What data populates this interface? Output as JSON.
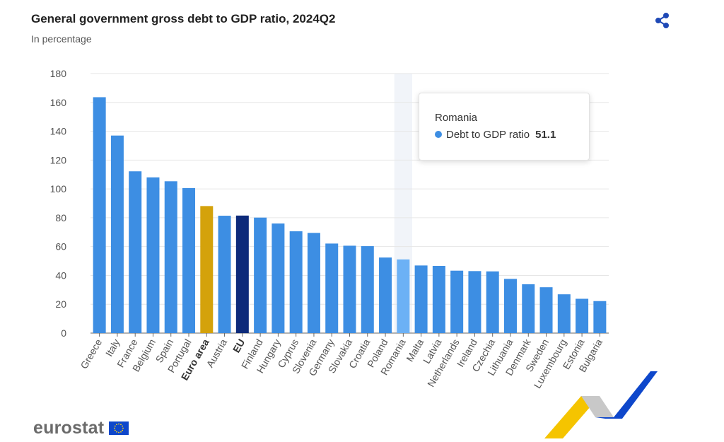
{
  "header": {
    "title": "General government gross debt to GDP ratio, 2024Q2",
    "subtitle": "In percentage"
  },
  "icons": {
    "share": "share-icon",
    "flag": "eu-flag-icon"
  },
  "tooltip": {
    "country": "Romania",
    "series": "Debt to GDP ratio",
    "value": "51.1"
  },
  "footer": {
    "logo": "eurostat"
  },
  "colors": {
    "bar": "#3d8ee3",
    "euro_area": "#d4a20b",
    "eu": "#0d2a7a",
    "highlight": "#6cb1f5",
    "grid": "#e6e6e6",
    "share_icon": "#1f49b6"
  },
  "chart_data": {
    "type": "bar",
    "title": "General government gross debt to GDP ratio, 2024Q2",
    "subtitle": "In percentage",
    "categories": [
      "Greece",
      "Italy",
      "France",
      "Belgium",
      "Spain",
      "Portugal",
      "Euro area",
      "Austria",
      "EU",
      "Finland",
      "Hungary",
      "Cyprus",
      "Slovenia",
      "Germany",
      "Slovakia",
      "Croatia",
      "Poland",
      "Romania",
      "Malta",
      "Latvia",
      "Netherlands",
      "Ireland",
      "Czechia",
      "Lithuania",
      "Denmark",
      "Sweden",
      "Luxembourg",
      "Estonia",
      "Bulgaria"
    ],
    "values": [
      163.6,
      137.0,
      112.2,
      108.0,
      105.3,
      100.6,
      88.1,
      81.4,
      81.5,
      80.1,
      76.0,
      70.6,
      69.5,
      62.1,
      60.6,
      60.3,
      52.4,
      51.1,
      46.9,
      46.6,
      43.3,
      43.0,
      42.8,
      37.6,
      33.9,
      31.8,
      26.9,
      23.8,
      22.2
    ],
    "bold_categories": [
      "Euro area",
      "EU"
    ],
    "highlighted": "Romania",
    "ylim": [
      0,
      180
    ],
    "yticks": [
      0,
      20,
      40,
      60,
      80,
      100,
      120,
      140,
      160,
      180
    ],
    "grid": true,
    "legend": "none"
  }
}
